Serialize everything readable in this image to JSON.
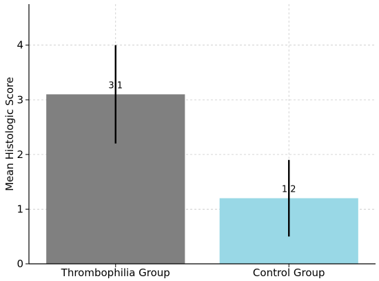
{
  "chart_data": {
    "type": "bar",
    "title": "",
    "xlabel": "",
    "ylabel": "Mean Histologic Score",
    "categories": [
      "Thrombophilia Group",
      "Control Group"
    ],
    "values": [
      3.1,
      1.2
    ],
    "value_labels": [
      "3.1",
      "1.2"
    ],
    "error_low": [
      2.2,
      0.5
    ],
    "error_high": [
      4.0,
      1.9
    ],
    "bar_colors": [
      "#808080",
      "#99d8e6"
    ],
    "ylim": [
      0,
      4.75
    ],
    "yticks": [
      0,
      1,
      2,
      3,
      4
    ],
    "grid": true
  }
}
